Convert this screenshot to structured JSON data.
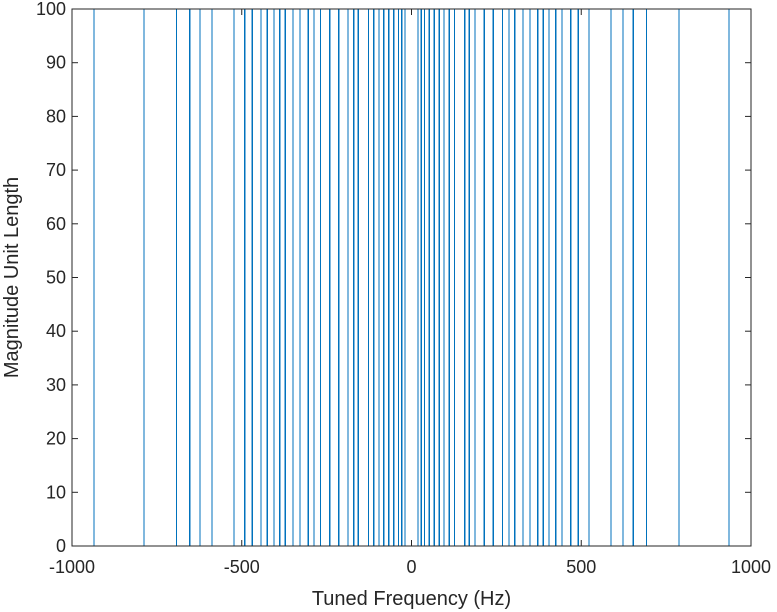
{
  "chart_data": {
    "type": "line",
    "title": "",
    "xlabel": "Tuned Frequency (Hz)",
    "ylabel": "Magnitude Unit Length",
    "xlim": [
      -1000,
      1000
    ],
    "ylim": [
      0,
      100
    ],
    "xticks": [
      -1000,
      -500,
      0,
      500,
      1000
    ],
    "xtick_labels": [
      "-1000",
      "-500",
      "0",
      "500",
      "1000"
    ],
    "yticks": [
      0,
      10,
      20,
      30,
      40,
      50,
      60,
      70,
      80,
      90,
      100
    ],
    "ytick_labels": [
      "0",
      "10",
      "20",
      "30",
      "40",
      "50",
      "60",
      "70",
      "80",
      "90",
      "100"
    ],
    "grid": false,
    "legend": "none",
    "baseline": 0,
    "peak_value": 100,
    "peak_x": [
      -935,
      -788,
      -692,
      -653,
      -623,
      -588,
      -523,
      -491,
      -469,
      -443,
      -425,
      -405,
      -388,
      -372,
      -349,
      -328,
      -304,
      -287,
      -268,
      -241,
      -214,
      -187,
      -170,
      -157,
      -127,
      -111,
      -96,
      -82,
      -67,
      -52,
      -38,
      -29,
      -19,
      19,
      29,
      38,
      52,
      67,
      82,
      96,
      111,
      127,
      157,
      170,
      187,
      214,
      241,
      268,
      287,
      304,
      328,
      349,
      372,
      388,
      405,
      425,
      443,
      469,
      491,
      523,
      588,
      623,
      653,
      692,
      788,
      935
    ],
    "series": [
      {
        "values_note_free": true
      }
    ]
  },
  "colors": {
    "line": "#0072BD",
    "axes": "#262626",
    "background": "#ffffff"
  }
}
